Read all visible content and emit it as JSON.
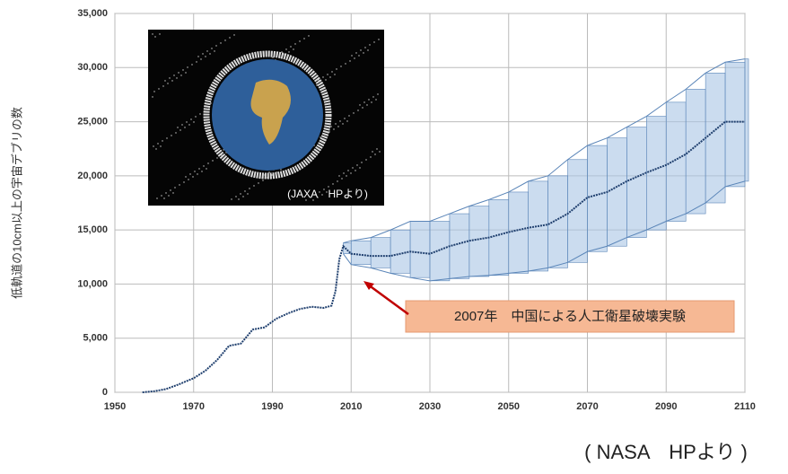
{
  "chart_data": {
    "type": "line",
    "ylabel": "低軌道の10cm以上の宇宙デブリの数",
    "annotation": "2007年　中国による人工衛星破壊実験",
    "inset_caption": "(JAXA　HPより)",
    "source": "( NASA　HPより )",
    "color": "#1f3f6e",
    "band_color": "#a9c4e4",
    "x": [
      1957,
      1960,
      1963,
      1966,
      1970,
      1973,
      1976,
      1979,
      1982,
      1985,
      1988,
      1991,
      1994,
      1997,
      2000,
      2003,
      2005,
      2006,
      2007,
      2008,
      2010,
      2015,
      2020,
      2025,
      2030,
      2035,
      2040,
      2045,
      2050,
      2055,
      2060,
      2065,
      2070,
      2075,
      2080,
      2085,
      2090,
      2095,
      2100,
      2105,
      2110
    ],
    "values": [
      0,
      100,
      300,
      700,
      1300,
      2000,
      3000,
      4300,
      4500,
      5800,
      6000,
      6800,
      7300,
      7700,
      7900,
      7800,
      8000,
      9300,
      12300,
      13500,
      12800,
      12600,
      12600,
      13000,
      12800,
      13500,
      14000,
      14300,
      14800,
      15200,
      15500,
      16500,
      18000,
      18500,
      19500,
      20300,
      21000,
      22000,
      23500,
      25000,
      25000
    ],
    "upper": [
      null,
      null,
      null,
      null,
      null,
      null,
      null,
      null,
      null,
      null,
      null,
      null,
      null,
      null,
      null,
      null,
      null,
      null,
      null,
      13800,
      14000,
      14300,
      15000,
      15800,
      15800,
      16500,
      17200,
      17800,
      18500,
      19500,
      20000,
      21500,
      22800,
      23500,
      24500,
      25500,
      26800,
      28000,
      29500,
      30500,
      30800
    ],
    "lower": [
      null,
      null,
      null,
      null,
      null,
      null,
      null,
      null,
      null,
      null,
      null,
      null,
      null,
      null,
      null,
      null,
      null,
      null,
      null,
      12800,
      11800,
      11500,
      11000,
      10600,
      10300,
      10500,
      10700,
      10800,
      11000,
      11200,
      11500,
      12000,
      13000,
      13500,
      14300,
      15000,
      15800,
      16500,
      17500,
      19000,
      19500
    ],
    "xlim": [
      1950,
      2110
    ],
    "ylim": [
      0,
      35000
    ],
    "xticks": [
      1950,
      1970,
      1990,
      2010,
      2030,
      2050,
      2070,
      2090,
      2110
    ],
    "yticks": [
      0,
      {
        "value": 5000,
        "label": "5,000"
      },
      {
        "value": 10000,
        "label": "10,000"
      },
      {
        "value": 15000,
        "label": "15,000"
      },
      {
        "value": 20000,
        "label": "20,000"
      },
      {
        "value": 25000,
        "label": "25,000"
      },
      {
        "value": 30000,
        "label": "30,000"
      },
      {
        "value": 35000,
        "label": "35,000"
      }
    ],
    "grid": true
  }
}
